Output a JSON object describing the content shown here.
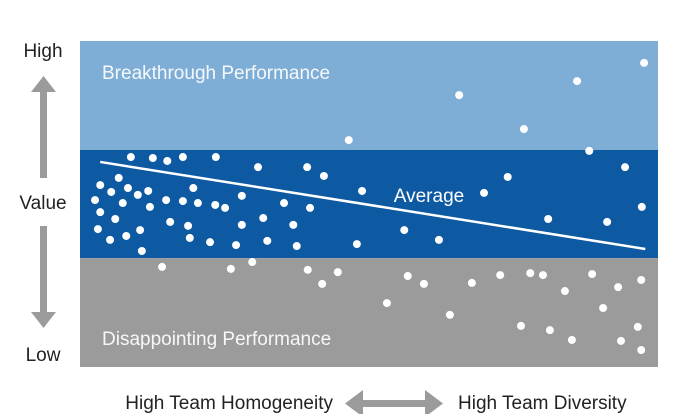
{
  "chart_data": {
    "type": "scatter",
    "xlim": [
      0,
      100
    ],
    "ylim": [
      0,
      100
    ],
    "bands": [
      {
        "label": "Breakthrough Performance",
        "from": 66.6,
        "to": 100,
        "color": "#7eaed6"
      },
      {
        "label": "",
        "from": 33.4,
        "to": 66.6,
        "color": "#0d5aa3"
      },
      {
        "label": "Disappointing Performance",
        "from": 0,
        "to": 33.4,
        "color": "#9b9b9b"
      }
    ],
    "trend": {
      "label": "Average",
      "color": "#ffffff",
      "x": [
        3.5,
        97.8
      ],
      "y": [
        62.9,
        36.2
      ]
    },
    "y_axis_labels": {
      "top": "High",
      "middle": "Value",
      "bottom": "Low"
    },
    "x_axis_labels": {
      "left": "High Team Homogeneity",
      "right": "High Team Diversity"
    },
    "x": [
      97.6,
      86.0,
      65.6,
      76.8,
      46.5,
      88.1,
      8.8,
      12.6,
      15.1,
      17.8,
      23.5,
      6.7,
      3.5,
      5.4,
      8.3,
      11.8,
      19.6,
      30.8,
      39.3,
      42.2,
      48.8,
      74.0,
      69.9,
      94.3,
      97.2,
      2.6,
      7.4,
      10.0,
      14.9,
      17.8,
      20.4,
      23.4,
      28.0,
      35.3,
      39.8,
      3.5,
      6.1,
      12.1,
      15.6,
      18.7,
      25.1,
      28.0,
      31.7,
      36.9,
      3.1,
      5.2,
      8.0,
      10.4,
      19.0,
      22.5,
      27.0,
      32.4,
      37.5,
      47.9,
      56.1,
      62.1,
      81.0,
      91.2,
      10.7,
      14.2,
      26.1,
      29.8,
      39.4,
      41.9,
      44.6,
      53.1,
      56.7,
      59.5,
      64.0,
      67.8,
      72.7,
      77.9,
      80.1,
      83.9,
      88.6,
      90.5,
      93.1,
      97.1,
      76.3,
      81.3,
      85.1,
      93.6,
      96.5,
      97.1
    ],
    "series": [
      {
        "color": "#ffffff",
        "values": [
          93.3,
          87.7,
          83.4,
          73.0,
          69.6,
          66.3,
          64.4,
          64.1,
          63.2,
          64.4,
          64.4,
          58.0,
          55.8,
          53.7,
          54.9,
          54.0,
          54.9,
          61.3,
          61.3,
          58.6,
          54.0,
          58.3,
          53.4,
          61.3,
          49.1,
          51.2,
          50.3,
          52.8,
          51.2,
          50.9,
          50.3,
          49.7,
          52.5,
          50.3,
          48.8,
          47.5,
          45.4,
          49.1,
          44.5,
          43.3,
          48.8,
          43.6,
          45.7,
          43.6,
          42.3,
          39.0,
          40.2,
          42.0,
          39.6,
          38.3,
          37.4,
          38.7,
          37.1,
          37.7,
          42.0,
          39.0,
          45.4,
          44.5,
          35.6,
          30.7,
          30.1,
          32.2,
          29.8,
          25.5,
          29.1,
          19.6,
          27.9,
          25.5,
          16.0,
          25.8,
          28.2,
          28.8,
          28.2,
          23.3,
          28.5,
          18.1,
          24.5,
          26.7,
          12.6,
          11.3,
          8.3,
          8.0,
          12.3,
          5.2
        ]
      }
    ]
  }
}
